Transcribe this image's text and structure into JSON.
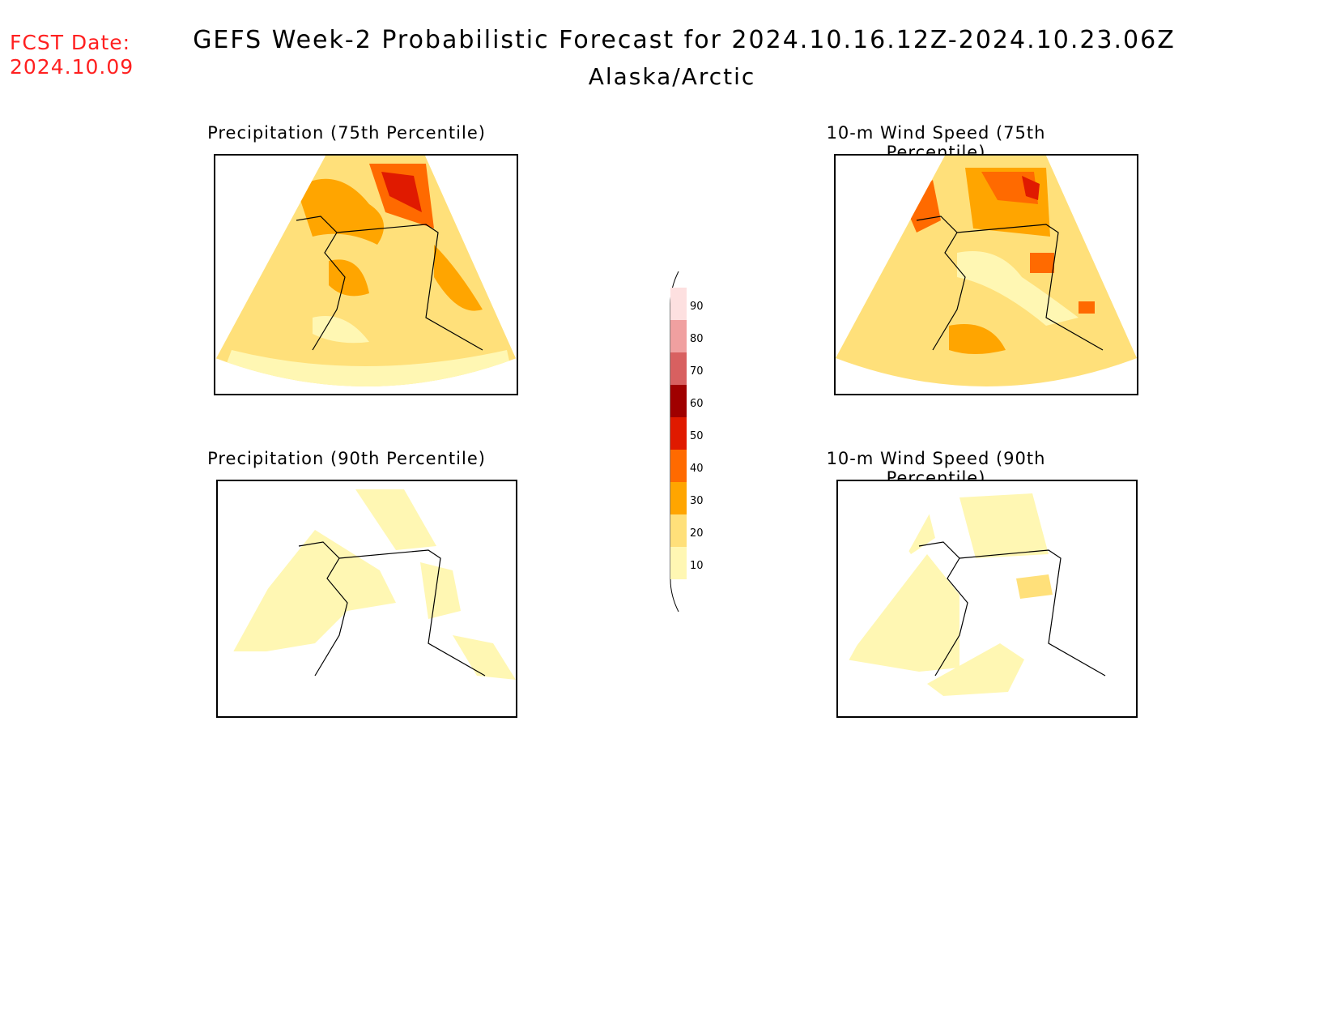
{
  "header": {
    "fcst_label": "FCST Date:",
    "fcst_date": "2024.10.09",
    "title": "GEFS Week-2 Probabilistic Forecast for 2024.10.16.12Z-2024.10.23.06Z",
    "subtitle": "Alaska/Arctic"
  },
  "panels": [
    {
      "id": "precip75",
      "title": "Precipitation (75th Percentile)"
    },
    {
      "id": "wind75",
      "title": "10-m Wind Speed (75th Percentile)"
    },
    {
      "id": "precip90",
      "title": "Precipitation (90th Percentile)"
    },
    {
      "id": "wind90",
      "title": "10-m Wind Speed (90th Percentile)"
    }
  ],
  "legend": {
    "labels": [
      "90",
      "80",
      "70",
      "60",
      "50",
      "40",
      "30",
      "20",
      "10"
    ],
    "colors": {
      "10": "#fff7b3",
      "20": "#ffe07a",
      "30": "#ffa500",
      "40": "#ff6a00",
      "50": "#e01a00",
      "60": "#a00000",
      "70": "#d86060",
      "80": "#f0a0a0",
      "90": "#fde0e0"
    }
  }
}
